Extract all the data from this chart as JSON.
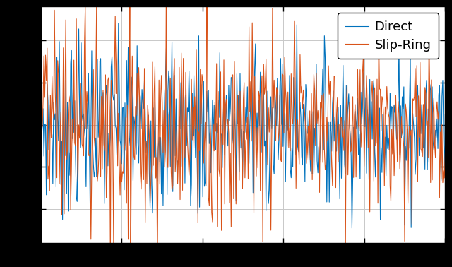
{
  "title": "",
  "xlabel": "",
  "ylabel": "",
  "direct_color": "#0072BD",
  "slipring_color": "#D95319",
  "legend_labels": [
    "Direct",
    "Slip-Ring"
  ],
  "n_points": 500,
  "seed_direct": 7,
  "seed_slipring": 13,
  "figsize": [
    6.4,
    3.78
  ],
  "dpi": 100,
  "background_color": "#000000",
  "axes_color": "#ffffff",
  "grid_color": "#c8c8c8",
  "n_xticks": 5,
  "legend_fontsize": 13
}
